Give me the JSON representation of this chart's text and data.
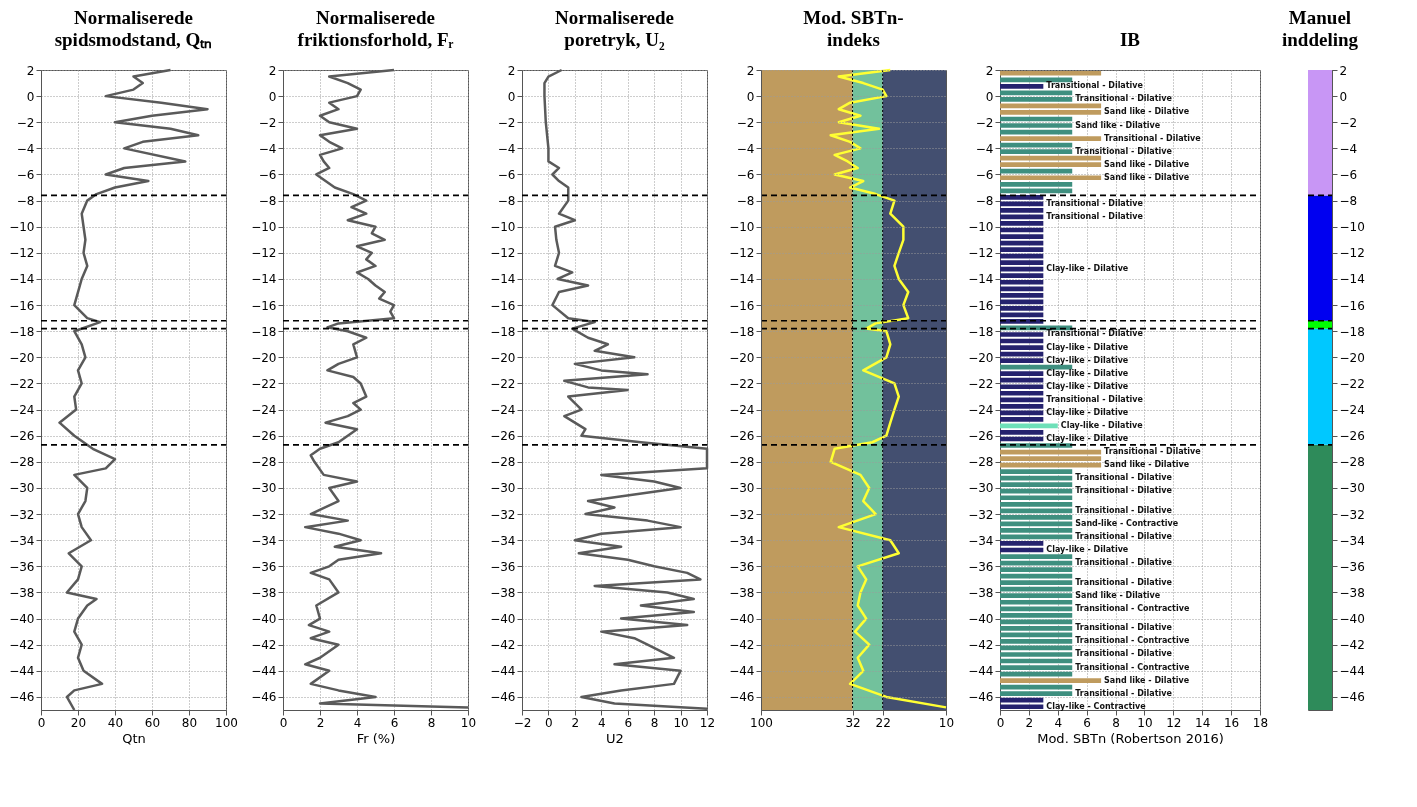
{
  "chart_data": [
    {
      "type": "line",
      "orientation": "horizontal",
      "title": "Normaliserede\nspidsmodstand, Qₜₙ",
      "xlabel": "Qtn",
      "xlim": [
        0,
        100
      ],
      "xticks": [
        0,
        20,
        40,
        60,
        80,
        100
      ],
      "ylim": [
        -47,
        2
      ],
      "yticks": [
        2,
        0,
        -2,
        -4,
        -6,
        -8,
        -10,
        -12,
        -14,
        -16,
        -18,
        -20,
        -22,
        -24,
        -26,
        -28,
        -30,
        -32,
        -34,
        -36,
        -38,
        -40,
        -42,
        -44,
        -46
      ],
      "grid": true,
      "series": [
        {
          "color": "#5a5a5a",
          "x": [
            2,
            1.5,
            1,
            0.5,
            0,
            -0.5,
            -1,
            -1.5,
            -2,
            -2.5,
            -3,
            -3.5,
            -4,
            -5,
            -5.5,
            -6,
            -6.5,
            -7,
            -7.5,
            -8,
            -9,
            -10,
            -11,
            -12,
            -13,
            -14,
            -15,
            -16,
            -17,
            -17.3,
            -18,
            -19,
            -20,
            -21,
            -22,
            -23,
            -24,
            -25,
            -26,
            -27,
            -27.8,
            -28.5,
            -29,
            -30,
            -31,
            -32,
            -33,
            -34,
            -35,
            -36,
            -37,
            -38,
            -38.5,
            -39,
            -40,
            -41,
            -42,
            -43,
            -44,
            -45,
            -45.5,
            -46,
            -47
          ],
          "values": [
            70,
            50,
            55,
            50,
            35,
            65,
            90,
            60,
            40,
            70,
            85,
            55,
            45,
            78,
            45,
            35,
            58,
            40,
            30,
            25,
            22,
            23,
            24,
            23,
            25,
            22,
            20,
            18,
            25,
            32,
            18,
            22,
            24,
            20,
            22,
            18,
            19,
            10,
            18,
            28,
            40,
            35,
            18,
            25,
            24,
            20,
            22,
            27,
            15,
            22,
            20,
            14,
            30,
            25,
            20,
            18,
            22,
            20,
            23,
            33,
            18,
            14,
            18
          ]
        }
      ],
      "ref_lines": [
        {
          "axis": "y",
          "value": -7.6,
          "line_style": "dashed",
          "color": "#000000"
        },
        {
          "axis": "y",
          "value": -17.2,
          "line_style": "dashed",
          "color": "#000000"
        },
        {
          "axis": "y",
          "value": -17.8,
          "line_style": "dashed",
          "color": "#000000"
        },
        {
          "axis": "y",
          "value": -26.7,
          "line_style": "dashed",
          "color": "#000000"
        }
      ]
    },
    {
      "type": "line",
      "orientation": "horizontal",
      "title": "Normaliserede\nfriktionsforhold, Fᵣ",
      "xlabel": "Fr (%)",
      "xlim": [
        0,
        10
      ],
      "xticks": [
        0,
        2,
        4,
        6,
        8,
        10
      ],
      "ylim": [
        -47,
        2
      ],
      "yticks": [
        2,
        0,
        -2,
        -4,
        -6,
        -8,
        -10,
        -12,
        -14,
        -16,
        -18,
        -20,
        -22,
        -24,
        -26,
        -28,
        -30,
        -32,
        -34,
        -36,
        -38,
        -40,
        -42,
        -44,
        -46
      ],
      "grid": true,
      "series": [
        {
          "color": "#5a5a5a",
          "x": [
            2,
            1.5,
            1,
            0.5,
            0,
            -0.5,
            -1,
            -1.5,
            -2,
            -2.5,
            -3,
            -3.5,
            -4,
            -4.5,
            -5,
            -5.5,
            -6,
            -6.5,
            -7,
            -7.5,
            -8,
            -8.5,
            -9,
            -9.5,
            -10,
            -10.5,
            -11,
            -11.5,
            -12,
            -12.5,
            -13,
            -13.5,
            -14,
            -14.5,
            -15,
            -15.5,
            -16,
            -16.5,
            -17,
            -17.4,
            -17.7,
            -18,
            -18.5,
            -19,
            -20,
            -20.5,
            -21,
            -21.5,
            -22,
            -23,
            -23.5,
            -24,
            -24.5,
            -25,
            -25.5,
            -26,
            -26.5,
            -27,
            -27.5,
            -28,
            -29,
            -29.5,
            -30,
            -31,
            -32,
            -32.5,
            -33,
            -33.5,
            -34,
            -34.5,
            -35,
            -35.5,
            -36,
            -36.5,
            -37,
            -38,
            -39,
            -40,
            -40.5,
            -41,
            -41.5,
            -42,
            -43,
            -43.5,
            -44,
            -45,
            -45.5,
            -46,
            -46.5,
            -46.8
          ],
          "values": [
            6,
            2.5,
            3.5,
            4.2,
            4,
            2.5,
            3,
            2,
            2.5,
            4,
            2,
            2.5,
            3.2,
            2,
            2.2,
            2.5,
            1.8,
            2.3,
            2.8,
            3.8,
            4.5,
            3.7,
            4.5,
            3.5,
            5,
            4.8,
            5.5,
            4,
            4.8,
            4.5,
            5,
            4,
            4.6,
            5,
            5.5,
            5.2,
            6,
            5.8,
            6,
            3,
            2.4,
            3.5,
            4.5,
            3.8,
            4,
            3,
            2.4,
            3.8,
            4.2,
            4.5,
            3.8,
            4.2,
            3.5,
            2.3,
            4,
            3.5,
            3,
            2,
            1.5,
            1.7,
            2.2,
            4,
            2.5,
            3,
            1.5,
            3.5,
            1.2,
            3,
            4.2,
            2.8,
            5.3,
            3,
            2.5,
            1.5,
            2.5,
            3,
            1.8,
            2,
            1.4,
            2.5,
            1.5,
            3,
            2,
            1.2,
            2.5,
            1.5,
            3,
            5,
            2,
            10
          ]
        }
      ],
      "ref_lines": [
        {
          "axis": "y",
          "value": -7.6,
          "line_style": "dashed",
          "color": "#000000"
        },
        {
          "axis": "y",
          "value": -17.2,
          "line_style": "dashed",
          "color": "#000000"
        },
        {
          "axis": "y",
          "value": -17.8,
          "line_style": "dashed",
          "color": "#000000"
        },
        {
          "axis": "y",
          "value": -26.7,
          "line_style": "dashed",
          "color": "#000000"
        }
      ]
    },
    {
      "type": "line",
      "orientation": "horizontal",
      "title": "Normaliserede\nporetryk, U₂",
      "xlabel": "U2",
      "xlim": [
        -2,
        12
      ],
      "xticks": [
        -2,
        0,
        2,
        4,
        6,
        8,
        10,
        12
      ],
      "ylim": [
        -47,
        2
      ],
      "yticks": [
        2,
        0,
        -2,
        -4,
        -6,
        -8,
        -10,
        -12,
        -14,
        -16,
        -18,
        -20,
        -22,
        -24,
        -26,
        -28,
        -30,
        -32,
        -34,
        -36,
        -38,
        -40,
        -42,
        -44,
        -46
      ],
      "grid": true,
      "series": [
        {
          "color": "#5a5a5a",
          "x": [
            2,
            1.5,
            1,
            0,
            -2,
            -4,
            -5,
            -5.5,
            -6,
            -6.5,
            -7,
            -8,
            -9,
            -9.5,
            -10,
            -11,
            -12,
            -13,
            -13.5,
            -14,
            -14.5,
            -15,
            -16,
            -17,
            -17.3,
            -17.8,
            -18.5,
            -19,
            -19.5,
            -20,
            -20.5,
            -21,
            -21.3,
            -21.8,
            -22.3,
            -22.5,
            -23,
            -24,
            -24.5,
            -25,
            -25.5,
            -26,
            -26.5,
            -27,
            -28.5,
            -29,
            -29.5,
            -30,
            -30.5,
            -31,
            -31.5,
            -32,
            -32.5,
            -33,
            -33.5,
            -34,
            -34.5,
            -35,
            -35.5,
            -36,
            -36.5,
            -37,
            -37.5,
            -38,
            -38.5,
            -39,
            -39.5,
            -40,
            -40.5,
            -41,
            -41.5,
            -42,
            -43,
            -43.5,
            -44,
            -45,
            -45.5,
            -46,
            -46.5,
            -46.9
          ],
          "values": [
            1,
            0,
            -0.3,
            -0.3,
            -0.2,
            0,
            0,
            0.8,
            0.3,
            0.8,
            1.5,
            1.5,
            0.8,
            2,
            0.5,
            0.6,
            0.8,
            0.5,
            1.8,
            0.7,
            3,
            0.8,
            0.3,
            1.5,
            3.5,
            1.8,
            3,
            4.5,
            3.5,
            6.5,
            2,
            4,
            7.5,
            1.2,
            3,
            6,
            1.5,
            2.5,
            1.2,
            2,
            2.8,
            2.5,
            7,
            12,
            12,
            4,
            8,
            10,
            6.5,
            3,
            5,
            2.8,
            7.5,
            10,
            4,
            2,
            5.5,
            2.3,
            6,
            8,
            10.5,
            11.5,
            3.5,
            9,
            11,
            7,
            11,
            5.5,
            10.5,
            4,
            6.5,
            7.5,
            9.5,
            5,
            10,
            9.5,
            5.5,
            2.5,
            5,
            12
          ]
        }
      ],
      "ref_lines": [
        {
          "axis": "y",
          "value": -7.6,
          "line_style": "dashed",
          "color": "#000000"
        },
        {
          "axis": "y",
          "value": -17.2,
          "line_style": "dashed",
          "color": "#000000"
        },
        {
          "axis": "y",
          "value": -17.8,
          "line_style": "dashed",
          "color": "#000000"
        },
        {
          "axis": "y",
          "value": -26.7,
          "line_style": "dashed",
          "color": "#000000"
        }
      ]
    },
    {
      "type": "line",
      "orientation": "horizontal",
      "title": "Mod. SBTn-\nindeks",
      "log": "x",
      "xlim": [
        100,
        10
      ],
      "xticks": [
        100,
        32,
        22,
        10
      ],
      "ylim": [
        -47,
        2
      ],
      "yticks": [
        2,
        0,
        -2,
        -4,
        -6,
        -8,
        -10,
        -12,
        -14,
        -16,
        -18,
        -20,
        -22,
        -24,
        -26,
        -28,
        -30,
        -32,
        -34,
        -36,
        -38,
        -40,
        -42,
        -44,
        -46
      ],
      "grid": "y",
      "bands": [
        {
          "axis": "x",
          "from": 100,
          "to": 32,
          "color": "#bf9b5e"
        },
        {
          "axis": "x",
          "from": 32,
          "to": 22,
          "color": "#72c19c"
        },
        {
          "axis": "x",
          "from": 22,
          "to": 10,
          "color": "#434f70"
        }
      ],
      "series": [
        {
          "color": "#ffff33",
          "x": [
            2,
            1.5,
            1,
            0.5,
            0,
            -0.5,
            -1,
            -1.5,
            -2,
            -2.5,
            -3,
            -3.5,
            -4,
            -4.5,
            -5,
            -5.5,
            -6,
            -6.5,
            -7,
            -7.5,
            -8,
            -9,
            -10,
            -11,
            -12,
            -13,
            -14,
            -15,
            -16,
            -17,
            -17.4,
            -17.8,
            -18,
            -19,
            -20,
            -21,
            -22,
            -23,
            -24,
            -25,
            -26,
            -26.5,
            -27,
            -28,
            -29,
            -30,
            -31,
            -32,
            -33,
            -34,
            -35,
            -36,
            -37,
            -38,
            -39,
            -40,
            -41,
            -42,
            -43,
            -44,
            -45,
            -46,
            -46.8
          ],
          "values": [
            20,
            38,
            28,
            22,
            21,
            33,
            38,
            29,
            38,
            23,
            42,
            33,
            29,
            40,
            34,
            30,
            40,
            28,
            33,
            24,
            19,
            20,
            17,
            17,
            18,
            19,
            18,
            16,
            17,
            16,
            24,
            27,
            21,
            20,
            21,
            28,
            19,
            18,
            19,
            20,
            21,
            25,
            40,
            42,
            29,
            26,
            28,
            24,
            38,
            20,
            18,
            30,
            27,
            29,
            30,
            27,
            31,
            26,
            30,
            28,
            33,
            21,
            10
          ]
        }
      ],
      "ref_lines": [
        {
          "axis": "x",
          "value": 32,
          "line_style": "dotted",
          "color": "#000000"
        },
        {
          "axis": "x",
          "value": 22,
          "line_style": "dotted",
          "color": "#000000"
        },
        {
          "axis": "y",
          "value": -7.6,
          "line_style": "dashed",
          "color": "#000000"
        },
        {
          "axis": "y",
          "value": -17.2,
          "line_style": "dashed",
          "color": "#000000"
        },
        {
          "axis": "y",
          "value": -17.8,
          "line_style": "dashed",
          "color": "#000000"
        },
        {
          "axis": "y",
          "value": -26.7,
          "line_style": "dashed",
          "color": "#000000"
        }
      ]
    },
    {
      "type": "bar",
      "orientation": "horizontal",
      "title": "IB",
      "xlabel": "Mod. SBTn (Robertson 2016)",
      "xlim": [
        0,
        18
      ],
      "xticks": [
        0,
        2,
        4,
        6,
        8,
        10,
        12,
        14,
        16,
        18
      ],
      "ylim": [
        -47,
        2
      ],
      "yticks": [
        2,
        0,
        -2,
        -4,
        -6,
        -8,
        -10,
        -12,
        -14,
        -16,
        -18,
        -20,
        -22,
        -24,
        -26,
        -28,
        -30,
        -32,
        -34,
        -36,
        -38,
        -40,
        -42,
        -44,
        -46
      ],
      "grid": true,
      "x": [
        1.75,
        1.25,
        0.75,
        0.25,
        -0.25,
        -0.75,
        -1.25,
        -1.75,
        -2.25,
        -2.75,
        -3.25,
        -3.75,
        -4.25,
        -4.75,
        -5.25,
        -5.75,
        -6.25,
        -6.75,
        -7.25,
        -7.75,
        -8.25,
        -8.75,
        -9.25,
        -9.75,
        -10.25,
        -10.75,
        -11.25,
        -11.75,
        -12.25,
        -12.75,
        -13.25,
        -13.75,
        -14.25,
        -14.75,
        -15.25,
        -15.75,
        -16.25,
        -16.75,
        -17.25,
        -17.75,
        -18.25,
        -18.75,
        -19.25,
        -19.75,
        -20.25,
        -20.75,
        -21.25,
        -21.75,
        -22.25,
        -22.75,
        -23.25,
        -23.75,
        -24.25,
        -24.75,
        -25.25,
        -25.75,
        -26.25,
        -26.75,
        -27.25,
        -27.75,
        -28.25,
        -28.75,
        -29.25,
        -29.75,
        -30.25,
        -30.75,
        -31.25,
        -31.75,
        -32.25,
        -32.75,
        -33.25,
        -33.75,
        -34.25,
        -34.75,
        -35.25,
        -35.75,
        -36.25,
        -36.75,
        -37.25,
        -37.75,
        -38.25,
        -38.75,
        -39.25,
        -39.75,
        -40.25,
        -40.75,
        -41.25,
        -41.75,
        -42.25,
        -42.75,
        -43.25,
        -43.75,
        -44.25,
        -44.75,
        -45.25,
        -45.75,
        -46.25,
        -46.75
      ],
      "values": [
        7,
        5,
        3,
        5,
        5,
        7,
        7,
        5,
        5,
        5,
        7,
        5,
        5,
        7,
        7,
        5,
        7,
        5,
        5,
        3,
        3,
        3,
        3,
        3,
        3,
        3,
        3,
        3,
        3,
        3,
        3,
        3,
        3,
        3,
        3,
        3,
        3,
        3,
        3,
        5,
        3,
        3,
        3,
        3,
        3,
        5,
        3,
        3,
        3,
        3,
        3,
        3,
        3,
        3,
        4,
        3,
        3,
        5,
        7,
        7,
        7,
        5,
        5,
        5,
        5,
        5,
        5,
        5,
        5,
        5,
        5,
        5,
        3,
        3,
        5,
        5,
        5,
        5,
        5,
        5,
        5,
        5,
        5,
        5,
        5,
        5,
        5,
        5,
        5,
        5,
        5,
        5,
        5,
        7,
        5,
        5,
        3,
        3
      ],
      "colors": [
        "#bf9b5e",
        "#3e8f7f",
        "#25226e",
        "#3e8f7f",
        "#3e8f7f",
        "#bf9b5e",
        "#bf9b5e",
        "#3e8f7f",
        "#3e8f7f",
        "#3e8f7f",
        "#bf9b5e",
        "#3e8f7f",
        "#3e8f7f",
        "#bf9b5e",
        "#bf9b5e",
        "#3e8f7f",
        "#bf9b5e",
        "#3e8f7f",
        "#3e8f7f",
        "#25226e",
        "#25226e",
        "#25226e",
        "#25226e",
        "#25226e",
        "#25226e",
        "#25226e",
        "#25226e",
        "#25226e",
        "#25226e",
        "#25226e",
        "#25226e",
        "#25226e",
        "#25226e",
        "#25226e",
        "#25226e",
        "#25226e",
        "#25226e",
        "#25226e",
        "#25226e",
        "#3e8f7f",
        "#25226e",
        "#25226e",
        "#25226e",
        "#25226e",
        "#25226e",
        "#3e8f7f",
        "#25226e",
        "#25226e",
        "#25226e",
        "#25226e",
        "#25226e",
        "#25226e",
        "#25226e",
        "#25226e",
        "#6ee0b8",
        "#25226e",
        "#25226e",
        "#3e8f7f",
        "#bf9b5e",
        "#bf9b5e",
        "#bf9b5e",
        "#3e8f7f",
        "#3e8f7f",
        "#3e8f7f",
        "#3e8f7f",
        "#3e8f7f",
        "#3e8f7f",
        "#3e8f7f",
        "#3e8f7f",
        "#3e8f7f",
        "#3e8f7f",
        "#3e8f7f",
        "#25226e",
        "#25226e",
        "#3e8f7f",
        "#3e8f7f",
        "#3e8f7f",
        "#3e8f7f",
        "#3e8f7f",
        "#3e8f7f",
        "#3e8f7f",
        "#3e8f7f",
        "#3e8f7f",
        "#3e8f7f",
        "#3e8f7f",
        "#3e8f7f",
        "#3e8f7f",
        "#3e8f7f",
        "#3e8f7f",
        "#3e8f7f",
        "#3e8f7f",
        "#3e8f7f",
        "#3e8f7f",
        "#bf9b5e",
        "#3e8f7f",
        "#3e8f7f",
        "#25226e",
        "#25226e"
      ],
      "value_labels": [
        null,
        null,
        "Transitional - Dilative",
        null,
        "Transitional - Dilative",
        null,
        "Sand like - Dilative",
        null,
        "Sand like - Dilative",
        null,
        "Transitional - Dilative",
        null,
        "Transitional - Dilative",
        null,
        "Sand like - Dilative",
        null,
        "Sand like - Dilative",
        null,
        null,
        null,
        "Transitional - Dilative",
        null,
        "Transitional - Dilative",
        null,
        null,
        null,
        null,
        null,
        null,
        null,
        "Clay-like - Dilative",
        null,
        null,
        null,
        null,
        null,
        null,
        null,
        null,
        null,
        "Transitional - Dilative",
        null,
        "Clay-like - Dilative",
        null,
        "Clay-like - Dilative",
        null,
        "Clay-like - Dilative",
        null,
        "Clay-like - Dilative",
        null,
        "Transitional - Dilative",
        null,
        "Clay-like - Dilative",
        null,
        "Clay-like - Dilative",
        null,
        "Clay-like - Dilative",
        null,
        "Transitional - Dilative",
        null,
        "Sand like - Dilative",
        null,
        "Transitional - Dilative",
        null,
        "Transitional - Dilative",
        null,
        null,
        "Transitional - Dilative",
        null,
        "Sand-like - Contractive",
        null,
        "Transitional - Dilative",
        null,
        "Clay-like - Dilative",
        null,
        "Transitional - Dilative",
        null,
        null,
        "Transitional - Dilative",
        null,
        "Sand like - Dilative",
        null,
        "Transitional - Contractive",
        null,
        null,
        "Transitional - Dilative",
        null,
        "Transitional - Contractive",
        null,
        "Transitional - Dilative",
        null,
        "Transitional - Contractive",
        null,
        "Sand like - Dilative",
        null,
        "Transitional - Dilative",
        null,
        "Clay-like - Contractive"
      ],
      "ref_lines": [
        {
          "axis": "y",
          "value": -7.6,
          "line_style": "dashed",
          "color": "#000000"
        },
        {
          "axis": "y",
          "value": -17.2,
          "line_style": "dashed",
          "color": "#000000"
        },
        {
          "axis": "y",
          "value": -17.8,
          "line_style": "dashed",
          "color": "#000000"
        },
        {
          "axis": "y",
          "value": -26.7,
          "line_style": "dashed",
          "color": "#000000"
        }
      ]
    },
    {
      "type": "bar",
      "title": "Manuel\ninddeling",
      "categories": [
        null
      ],
      "ylim": [
        -47,
        2
      ],
      "yticks": [
        2,
        0,
        -2,
        -4,
        -6,
        -8,
        -10,
        -12,
        -14,
        -16,
        -18,
        -20,
        -22,
        -24,
        -26,
        -28,
        -30,
        -32,
        -34,
        -36,
        -38,
        -40,
        -42,
        -44,
        -46
      ],
      "tick_labels": "y",
      "series": [
        {
          "color": "#2e8b5a",
          "values": [
            20.3
          ],
          "base": [
            -47
          ]
        },
        {
          "color": "#00c8ff",
          "values": [
            8.9
          ],
          "base": [
            -26.7
          ]
        },
        {
          "color": "#00ff00",
          "values": [
            0.6
          ],
          "base": [
            -17.8
          ]
        },
        {
          "color": "#0000f0",
          "values": [
            9.6
          ],
          "base": [
            -17.2
          ]
        },
        {
          "color": "#c896f5",
          "values": [
            9.6
          ],
          "base": [
            -7.6
          ]
        }
      ],
      "ref_lines": [
        {
          "axis": "y",
          "value": -7.6,
          "line_style": "dashed",
          "color": "#000000"
        },
        {
          "axis": "y",
          "value": -17.2,
          "line_style": "dashed",
          "color": "#000000"
        },
        {
          "axis": "y",
          "value": -17.8,
          "line_style": "dashed",
          "color": "#000000"
        },
        {
          "axis": "y",
          "value": -26.7,
          "line_style": "dashed",
          "color": "#000000"
        }
      ]
    }
  ]
}
